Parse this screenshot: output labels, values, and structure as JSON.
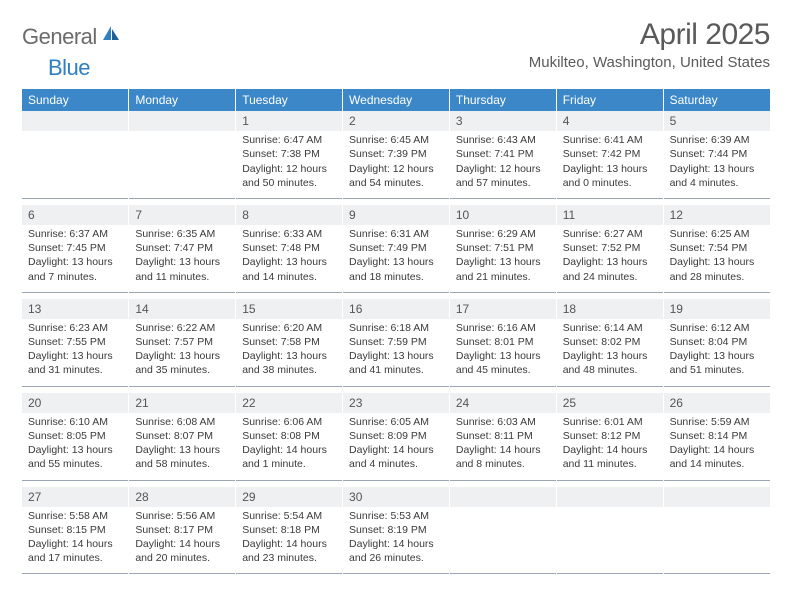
{
  "brand": {
    "name_part1": "General",
    "name_part2": "Blue"
  },
  "title": "April 2025",
  "location": "Mukilteo, Washington, United States",
  "colors": {
    "header_bg": "#3b87c8",
    "header_text": "#ffffff",
    "daynum_bg": "#eef0f1",
    "separator": "#9aa6b2",
    "text": "#3a3a3a",
    "title_text": "#5a5a5a",
    "logo_gray": "#6b6b6b",
    "logo_blue": "#2f7fc2"
  },
  "day_headers": [
    "Sunday",
    "Monday",
    "Tuesday",
    "Wednesday",
    "Thursday",
    "Friday",
    "Saturday"
  ],
  "weeks": [
    [
      {
        "num": "",
        "lines": []
      },
      {
        "num": "",
        "lines": []
      },
      {
        "num": "1",
        "lines": [
          "Sunrise: 6:47 AM",
          "Sunset: 7:38 PM",
          "Daylight: 12 hours",
          "and 50 minutes."
        ]
      },
      {
        "num": "2",
        "lines": [
          "Sunrise: 6:45 AM",
          "Sunset: 7:39 PM",
          "Daylight: 12 hours",
          "and 54 minutes."
        ]
      },
      {
        "num": "3",
        "lines": [
          "Sunrise: 6:43 AM",
          "Sunset: 7:41 PM",
          "Daylight: 12 hours",
          "and 57 minutes."
        ]
      },
      {
        "num": "4",
        "lines": [
          "Sunrise: 6:41 AM",
          "Sunset: 7:42 PM",
          "Daylight: 13 hours",
          "and 0 minutes."
        ]
      },
      {
        "num": "5",
        "lines": [
          "Sunrise: 6:39 AM",
          "Sunset: 7:44 PM",
          "Daylight: 13 hours",
          "and 4 minutes."
        ]
      }
    ],
    [
      {
        "num": "6",
        "lines": [
          "Sunrise: 6:37 AM",
          "Sunset: 7:45 PM",
          "Daylight: 13 hours",
          "and 7 minutes."
        ]
      },
      {
        "num": "7",
        "lines": [
          "Sunrise: 6:35 AM",
          "Sunset: 7:47 PM",
          "Daylight: 13 hours",
          "and 11 minutes."
        ]
      },
      {
        "num": "8",
        "lines": [
          "Sunrise: 6:33 AM",
          "Sunset: 7:48 PM",
          "Daylight: 13 hours",
          "and 14 minutes."
        ]
      },
      {
        "num": "9",
        "lines": [
          "Sunrise: 6:31 AM",
          "Sunset: 7:49 PM",
          "Daylight: 13 hours",
          "and 18 minutes."
        ]
      },
      {
        "num": "10",
        "lines": [
          "Sunrise: 6:29 AM",
          "Sunset: 7:51 PM",
          "Daylight: 13 hours",
          "and 21 minutes."
        ]
      },
      {
        "num": "11",
        "lines": [
          "Sunrise: 6:27 AM",
          "Sunset: 7:52 PM",
          "Daylight: 13 hours",
          "and 24 minutes."
        ]
      },
      {
        "num": "12",
        "lines": [
          "Sunrise: 6:25 AM",
          "Sunset: 7:54 PM",
          "Daylight: 13 hours",
          "and 28 minutes."
        ]
      }
    ],
    [
      {
        "num": "13",
        "lines": [
          "Sunrise: 6:23 AM",
          "Sunset: 7:55 PM",
          "Daylight: 13 hours",
          "and 31 minutes."
        ]
      },
      {
        "num": "14",
        "lines": [
          "Sunrise: 6:22 AM",
          "Sunset: 7:57 PM",
          "Daylight: 13 hours",
          "and 35 minutes."
        ]
      },
      {
        "num": "15",
        "lines": [
          "Sunrise: 6:20 AM",
          "Sunset: 7:58 PM",
          "Daylight: 13 hours",
          "and 38 minutes."
        ]
      },
      {
        "num": "16",
        "lines": [
          "Sunrise: 6:18 AM",
          "Sunset: 7:59 PM",
          "Daylight: 13 hours",
          "and 41 minutes."
        ]
      },
      {
        "num": "17",
        "lines": [
          "Sunrise: 6:16 AM",
          "Sunset: 8:01 PM",
          "Daylight: 13 hours",
          "and 45 minutes."
        ]
      },
      {
        "num": "18",
        "lines": [
          "Sunrise: 6:14 AM",
          "Sunset: 8:02 PM",
          "Daylight: 13 hours",
          "and 48 minutes."
        ]
      },
      {
        "num": "19",
        "lines": [
          "Sunrise: 6:12 AM",
          "Sunset: 8:04 PM",
          "Daylight: 13 hours",
          "and 51 minutes."
        ]
      }
    ],
    [
      {
        "num": "20",
        "lines": [
          "Sunrise: 6:10 AM",
          "Sunset: 8:05 PM",
          "Daylight: 13 hours",
          "and 55 minutes."
        ]
      },
      {
        "num": "21",
        "lines": [
          "Sunrise: 6:08 AM",
          "Sunset: 8:07 PM",
          "Daylight: 13 hours",
          "and 58 minutes."
        ]
      },
      {
        "num": "22",
        "lines": [
          "Sunrise: 6:06 AM",
          "Sunset: 8:08 PM",
          "Daylight: 14 hours",
          "and 1 minute."
        ]
      },
      {
        "num": "23",
        "lines": [
          "Sunrise: 6:05 AM",
          "Sunset: 8:09 PM",
          "Daylight: 14 hours",
          "and 4 minutes."
        ]
      },
      {
        "num": "24",
        "lines": [
          "Sunrise: 6:03 AM",
          "Sunset: 8:11 PM",
          "Daylight: 14 hours",
          "and 8 minutes."
        ]
      },
      {
        "num": "25",
        "lines": [
          "Sunrise: 6:01 AM",
          "Sunset: 8:12 PM",
          "Daylight: 14 hours",
          "and 11 minutes."
        ]
      },
      {
        "num": "26",
        "lines": [
          "Sunrise: 5:59 AM",
          "Sunset: 8:14 PM",
          "Daylight: 14 hours",
          "and 14 minutes."
        ]
      }
    ],
    [
      {
        "num": "27",
        "lines": [
          "Sunrise: 5:58 AM",
          "Sunset: 8:15 PM",
          "Daylight: 14 hours",
          "and 17 minutes."
        ]
      },
      {
        "num": "28",
        "lines": [
          "Sunrise: 5:56 AM",
          "Sunset: 8:17 PM",
          "Daylight: 14 hours",
          "and 20 minutes."
        ]
      },
      {
        "num": "29",
        "lines": [
          "Sunrise: 5:54 AM",
          "Sunset: 8:18 PM",
          "Daylight: 14 hours",
          "and 23 minutes."
        ]
      },
      {
        "num": "30",
        "lines": [
          "Sunrise: 5:53 AM",
          "Sunset: 8:19 PM",
          "Daylight: 14 hours",
          "and 26 minutes."
        ]
      },
      {
        "num": "",
        "lines": []
      },
      {
        "num": "",
        "lines": []
      },
      {
        "num": "",
        "lines": []
      }
    ]
  ]
}
